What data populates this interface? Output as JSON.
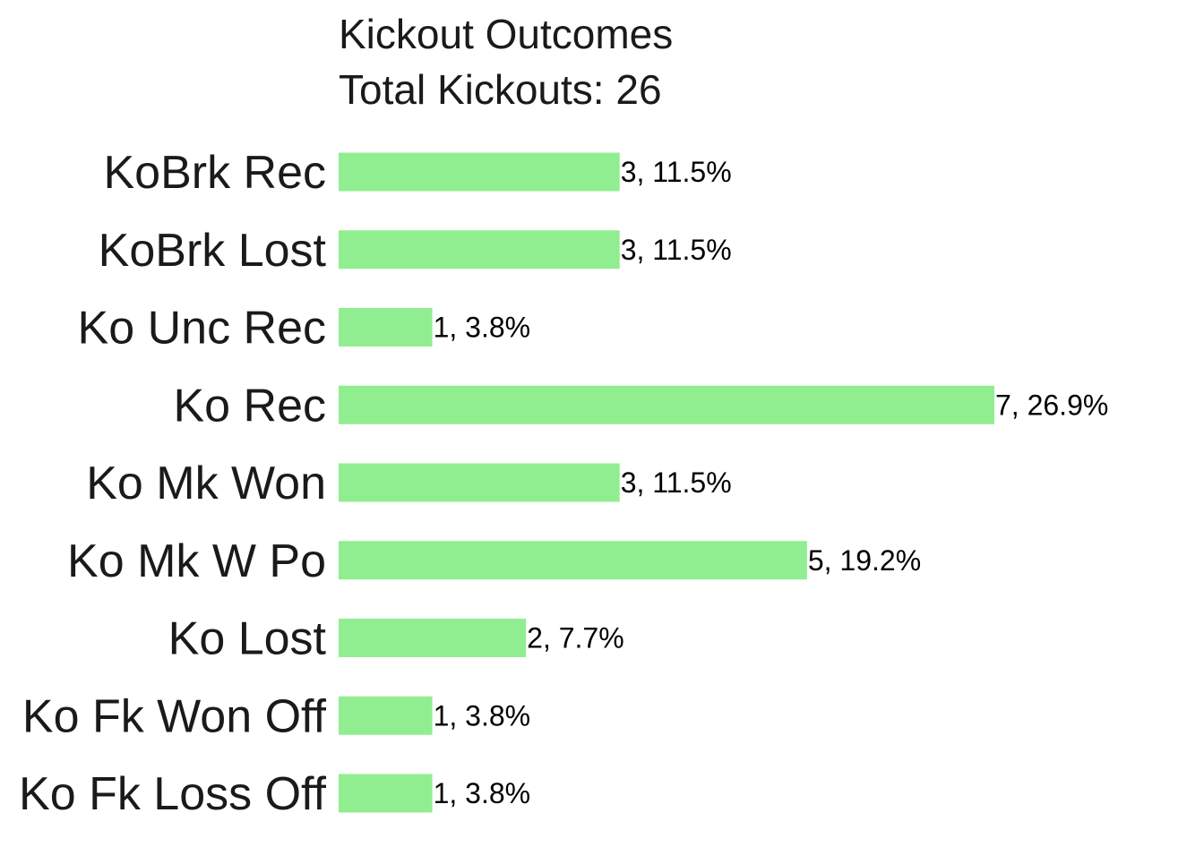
{
  "chart_data": {
    "type": "bar",
    "orientation": "horizontal",
    "title": "Kickout Outcomes",
    "subtitle": "Total Kickouts: 26",
    "categories": [
      "KoBrk Rec",
      "KoBrk Lost",
      "Ko Unc Rec",
      "Ko Rec",
      "Ko Mk Won",
      "Ko Mk W Po",
      "Ko Lost",
      "Ko Fk Won Off",
      "Ko Fk Loss Off"
    ],
    "values": [
      3,
      3,
      1,
      7,
      3,
      5,
      2,
      1,
      1
    ],
    "data_labels": [
      "3, 11.5%",
      "3, 11.5%",
      "1, 3.8%",
      "7, 26.9%",
      "3, 11.5%",
      "5, 19.2%",
      "2, 7.7%",
      "1, 3.8%",
      "1, 3.8%"
    ],
    "xlim": [
      0,
      7
    ],
    "grid": false,
    "axes_visible": false,
    "bar_color": "#90ee90",
    "text_color": "#1a1a1a"
  }
}
